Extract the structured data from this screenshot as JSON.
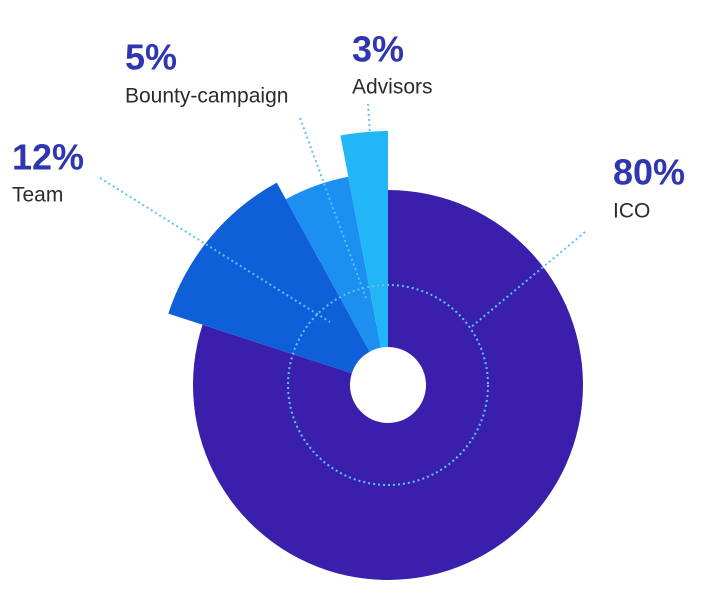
{
  "chart_data": {
    "type": "pie",
    "categories": [
      "ICO",
      "Team",
      "Bounty-campaign",
      "Advisors"
    ],
    "values": [
      80,
      12,
      5,
      3
    ],
    "value_labels": [
      "80%",
      "12%",
      "5%",
      "3%"
    ],
    "colors": [
      "#3a1fad",
      "#0f5fd8",
      "#1c8ff0",
      "#22b6f6"
    ]
  }
}
